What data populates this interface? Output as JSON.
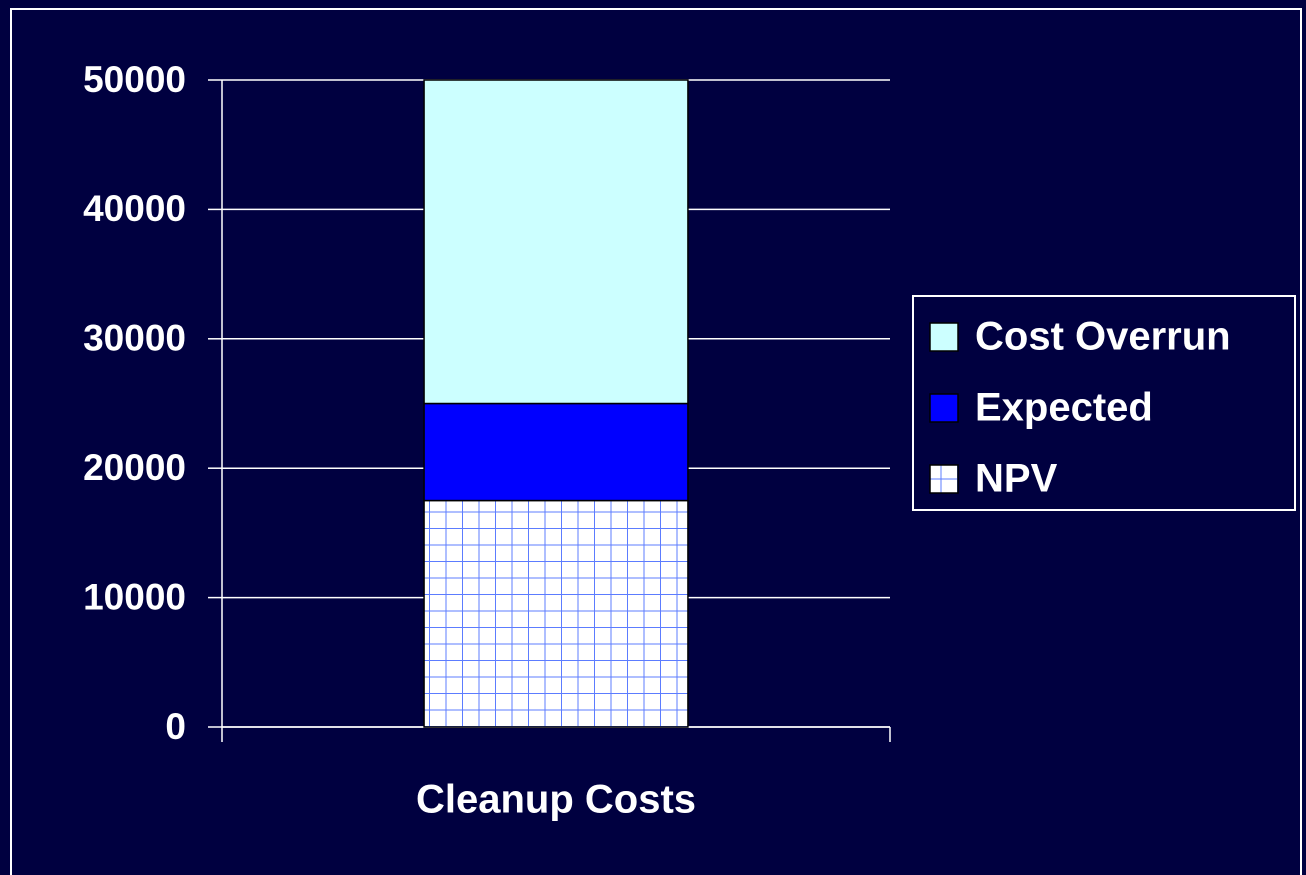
{
  "chart_data": {
    "type": "stacked_bar",
    "categories": [
      "Cleanup Costs"
    ],
    "series": [
      {
        "name": "NPV",
        "color": "#ffffff",
        "pattern": "grid",
        "pattern_color": "#5c7cff",
        "values": [
          17500
        ]
      },
      {
        "name": "Expected",
        "color": "#0000ff",
        "values": [
          7500
        ]
      },
      {
        "name": "Cost Overrun",
        "color": "#ccffff",
        "values": [
          25000
        ]
      }
    ],
    "ylim": [
      0,
      50000
    ],
    "yticks": [
      0,
      10000,
      20000,
      30000,
      40000,
      50000
    ],
    "grid": true,
    "legend": "right"
  }
}
